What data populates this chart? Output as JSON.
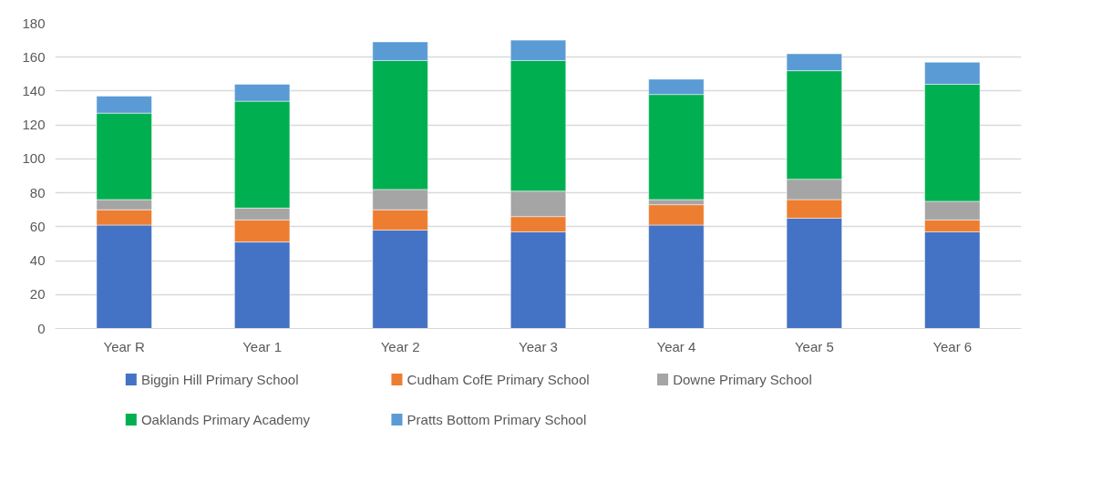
{
  "chart_data": {
    "type": "bar",
    "stacked": true,
    "categories": [
      "Year R",
      "Year 1",
      "Year 2",
      "Year 3",
      "Year 4",
      "Year 5",
      "Year 6"
    ],
    "series": [
      {
        "name": "Biggin Hill Primary School",
        "color": "#4472c4",
        "values": [
          61,
          51,
          58,
          57,
          61,
          65,
          57
        ]
      },
      {
        "name": "Cudham CofE Primary School",
        "color": "#ed7d31",
        "values": [
          9,
          13,
          12,
          9,
          12,
          11,
          7
        ]
      },
      {
        "name": "Downe Primary School",
        "color": "#a5a5a5",
        "values": [
          6,
          7,
          12,
          15,
          3,
          12,
          11
        ]
      },
      {
        "name": "Oaklands Primary Academy",
        "color": "#00b050",
        "values": [
          51,
          63,
          76,
          77,
          62,
          64,
          69
        ]
      },
      {
        "name": "Pratts Bottom Primary School",
        "color": "#5b9bd5",
        "values": [
          10,
          10,
          11,
          12,
          9,
          10,
          13
        ]
      }
    ],
    "ylim": [
      0,
      180
    ],
    "yticks": [
      0,
      20,
      40,
      60,
      80,
      100,
      120,
      140,
      160,
      180
    ],
    "grid": "y",
    "legend": "bottom"
  }
}
